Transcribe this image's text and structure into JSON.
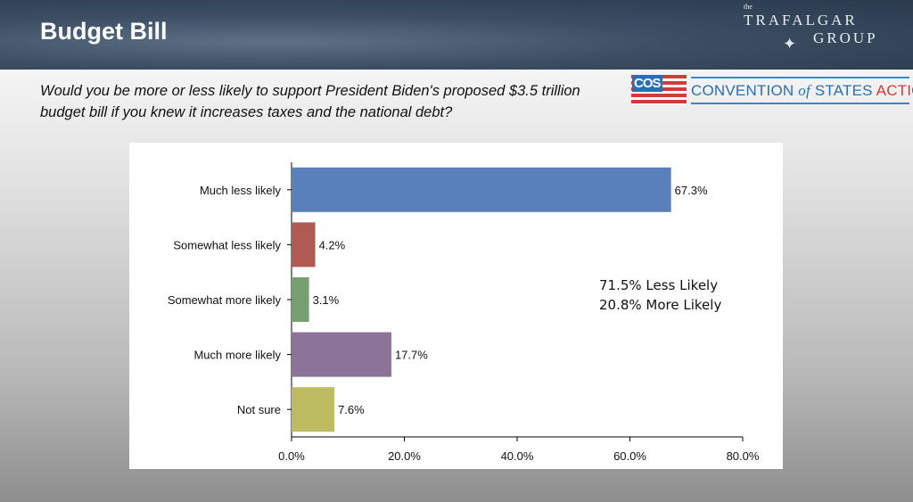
{
  "header": {
    "title": "Budget Bill",
    "brand_logo": "the TRAFALGAR GROUP",
    "partner_logo": {
      "badge": "COS",
      "text_a": "CONVENTION",
      "text_of": "of",
      "text_b": "STATES",
      "text_c": "ACTION"
    }
  },
  "question": "Would you be more or less likely to support President Biden's proposed $3.5 trillion budget bill if you knew it increases taxes and the national debt?",
  "summary": {
    "line1": "71.5% Less Likely",
    "line2": "20.8% More Likely"
  },
  "chart_data": {
    "type": "bar",
    "orientation": "horizontal",
    "categories": [
      "Much less likely",
      "Somewhat less likely",
      "Somewhat more likely",
      "Much more likely",
      "Not sure"
    ],
    "values": [
      67.3,
      4.2,
      3.1,
      17.7,
      7.6
    ],
    "data_labels": [
      "67.3%",
      "4.2%",
      "3.1%",
      "17.7%",
      "7.6%"
    ],
    "colors": [
      "#5a80bb",
      "#b05a54",
      "#77a071",
      "#8c739a",
      "#bcbb62"
    ],
    "xlim": [
      0,
      80
    ],
    "xticks": [
      "0.0%",
      "20.0%",
      "40.0%",
      "60.0%",
      "80.0%"
    ],
    "grid": false,
    "title": "",
    "xlabel": "",
    "ylabel": ""
  }
}
